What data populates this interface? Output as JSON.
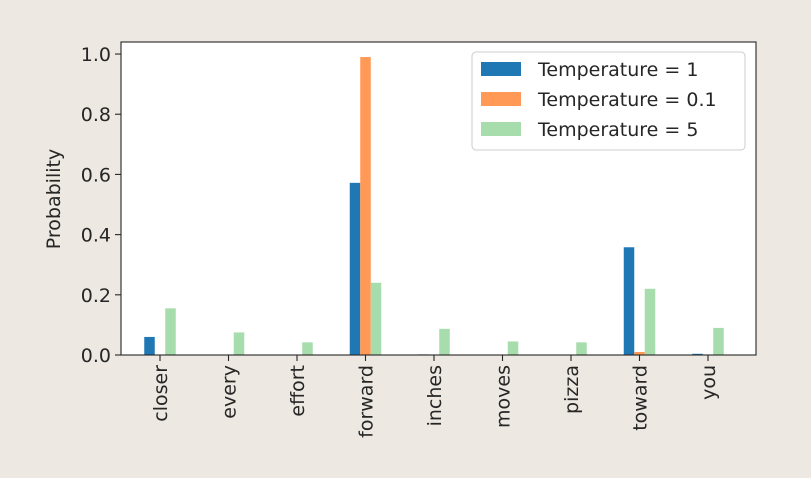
{
  "chart_data": {
    "type": "bar",
    "title": "",
    "xlabel": "",
    "ylabel": "Probability",
    "categories": [
      "closer",
      "every",
      "effort",
      "forward",
      "inches",
      "moves",
      "pizza",
      "toward",
      "you"
    ],
    "ylim": [
      0.0,
      1.04
    ],
    "yticks": [
      0.0,
      0.2,
      0.4,
      0.6,
      0.8,
      1.0
    ],
    "ytick_labels": [
      "0.0",
      "0.2",
      "0.4",
      "0.6",
      "0.8",
      "1.0"
    ],
    "series": [
      {
        "name": "Temperature = 1",
        "color": "#1f77b4",
        "values": [
          0.06,
          0.0,
          0.0,
          0.572,
          0.002,
          0.0,
          0.0,
          0.358,
          0.004
        ]
      },
      {
        "name": "Temperature = 0.1",
        "color": "#ff9955",
        "values": [
          0.0,
          0.0,
          0.0,
          0.99,
          0.0,
          0.0,
          0.0,
          0.01,
          0.0
        ]
      },
      {
        "name": "Temperature = 5",
        "color": "#a7dcac",
        "values": [
          0.155,
          0.075,
          0.042,
          0.24,
          0.087,
          0.045,
          0.042,
          0.22,
          0.09
        ]
      }
    ],
    "grid": false,
    "legend_position": "top-right"
  }
}
